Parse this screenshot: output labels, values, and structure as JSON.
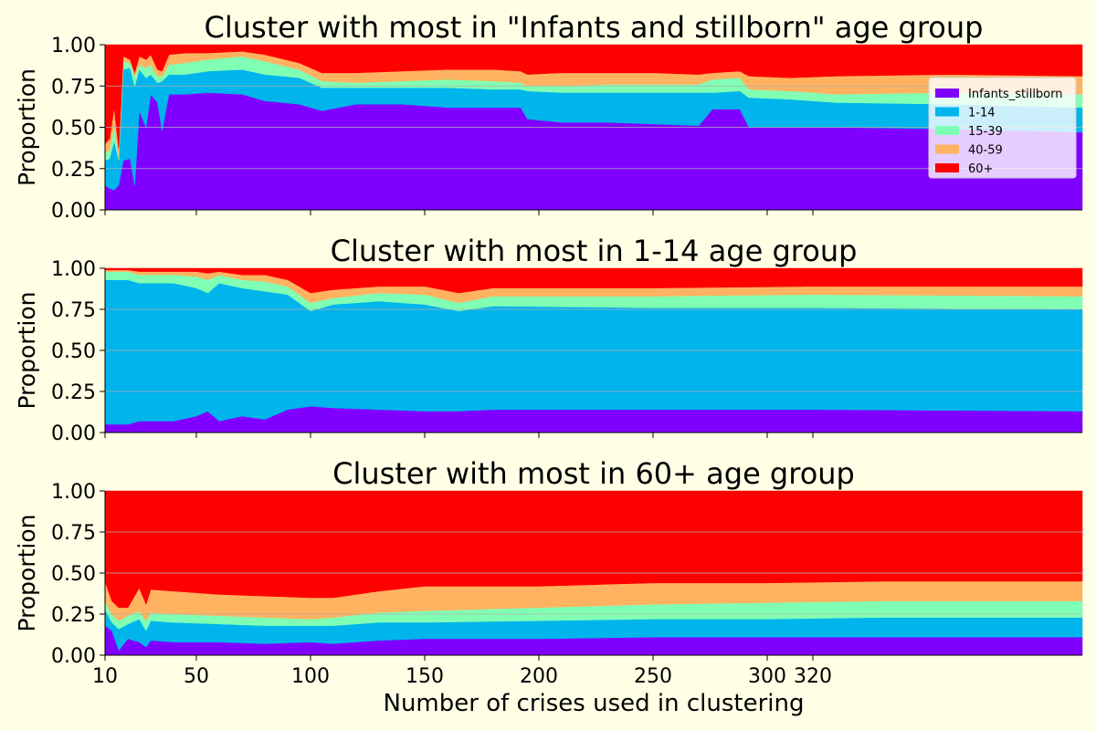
{
  "chart_data": {
    "type": "area",
    "stacked": true,
    "xlabel": "Number of crises used in clustering",
    "ylabel": "Proportion",
    "xlim": [
      10,
      438
    ],
    "ylim": [
      0,
      1
    ],
    "x_ticks": [
      10,
      50,
      100,
      150,
      200,
      250,
      300,
      320
    ],
    "y_ticks": [
      "0.00",
      "0.25",
      "0.50",
      "0.75",
      "1.00"
    ],
    "grid": "horizontal",
    "legend": "upper-right of first panel",
    "series_names": [
      "Infants_stillborn",
      "1-14",
      "15-39",
      "40-59",
      "60+"
    ],
    "colors": [
      "#8000ff",
      "#00b4ec",
      "#80ffb4",
      "#ffb360",
      "#ff0000"
    ],
    "panels": [
      {
        "title": "Cluster with most in \"Infants and stillborn\" age group",
        "show_legend": true,
        "anchors": [
          {
            "x": 10,
            "v": [
              0.15,
              0.15,
              0.05,
              0.05,
              0.6
            ]
          },
          {
            "x": 12,
            "v": [
              0.13,
              0.18,
              0.05,
              0.07,
              0.57
            ]
          },
          {
            "x": 14,
            "v": [
              0.12,
              0.3,
              0.1,
              0.1,
              0.38
            ]
          },
          {
            "x": 16,
            "v": [
              0.15,
              0.15,
              0.02,
              0.05,
              0.63
            ]
          },
          {
            "x": 18,
            "v": [
              0.3,
              0.55,
              0.05,
              0.03,
              0.07
            ]
          },
          {
            "x": 21,
            "v": [
              0.31,
              0.55,
              0.03,
              0.02,
              0.09
            ]
          },
          {
            "x": 23,
            "v": [
              0.15,
              0.6,
              0.06,
              0.02,
              0.17
            ]
          },
          {
            "x": 25,
            "v": [
              0.6,
              0.25,
              0.03,
              0.05,
              0.07
            ]
          },
          {
            "x": 28,
            "v": [
              0.5,
              0.3,
              0.06,
              0.05,
              0.09
            ]
          },
          {
            "x": 30,
            "v": [
              0.7,
              0.12,
              0.06,
              0.06,
              0.06
            ]
          },
          {
            "x": 33,
            "v": [
              0.65,
              0.12,
              0.04,
              0.04,
              0.15
            ]
          },
          {
            "x": 35,
            "v": [
              0.48,
              0.3,
              0.03,
              0.03,
              0.16
            ]
          },
          {
            "x": 38,
            "v": [
              0.7,
              0.12,
              0.06,
              0.06,
              0.06
            ]
          },
          {
            "x": 45,
            "v": [
              0.7,
              0.12,
              0.07,
              0.06,
              0.05
            ]
          },
          {
            "x": 55,
            "v": [
              0.71,
              0.13,
              0.07,
              0.04,
              0.05
            ]
          },
          {
            "x": 70,
            "v": [
              0.7,
              0.15,
              0.08,
              0.03,
              0.04
            ]
          },
          {
            "x": 80,
            "v": [
              0.66,
              0.16,
              0.08,
              0.04,
              0.06
            ]
          },
          {
            "x": 95,
            "v": [
              0.64,
              0.16,
              0.05,
              0.04,
              0.11
            ]
          },
          {
            "x": 105,
            "v": [
              0.6,
              0.14,
              0.04,
              0.05,
              0.17
            ]
          },
          {
            "x": 120,
            "v": [
              0.64,
              0.1,
              0.03,
              0.06,
              0.17
            ]
          },
          {
            "x": 140,
            "v": [
              0.64,
              0.1,
              0.04,
              0.06,
              0.16
            ]
          },
          {
            "x": 160,
            "v": [
              0.62,
              0.12,
              0.05,
              0.06,
              0.15
            ]
          },
          {
            "x": 180,
            "v": [
              0.62,
              0.11,
              0.05,
              0.07,
              0.15
            ]
          },
          {
            "x": 192,
            "v": [
              0.62,
              0.11,
              0.04,
              0.07,
              0.16
            ]
          },
          {
            "x": 195,
            "v": [
              0.55,
              0.17,
              0.03,
              0.07,
              0.18
            ]
          },
          {
            "x": 210,
            "v": [
              0.53,
              0.18,
              0.04,
              0.08,
              0.17
            ]
          },
          {
            "x": 230,
            "v": [
              0.53,
              0.18,
              0.05,
              0.07,
              0.17
            ]
          },
          {
            "x": 250,
            "v": [
              0.52,
              0.19,
              0.05,
              0.07,
              0.17
            ]
          },
          {
            "x": 270,
            "v": [
              0.51,
              0.2,
              0.05,
              0.06,
              0.18
            ]
          },
          {
            "x": 276,
            "v": [
              0.61,
              0.1,
              0.08,
              0.04,
              0.17
            ]
          },
          {
            "x": 288,
            "v": [
              0.61,
              0.11,
              0.08,
              0.04,
              0.16
            ]
          },
          {
            "x": 292,
            "v": [
              0.5,
              0.18,
              0.05,
              0.08,
              0.19
            ]
          },
          {
            "x": 310,
            "v": [
              0.5,
              0.17,
              0.05,
              0.08,
              0.2
            ]
          },
          {
            "x": 330,
            "v": [
              0.5,
              0.15,
              0.05,
              0.11,
              0.19
            ]
          },
          {
            "x": 380,
            "v": [
              0.49,
              0.15,
              0.07,
              0.11,
              0.18
            ]
          },
          {
            "x": 438,
            "v": [
              0.47,
              0.15,
              0.08,
              0.11,
              0.19
            ]
          }
        ]
      },
      {
        "title": "Cluster with most in 1-14 age group",
        "show_legend": false,
        "anchors": [
          {
            "x": 10,
            "v": [
              0.05,
              0.88,
              0.05,
              0.01,
              0.01
            ]
          },
          {
            "x": 20,
            "v": [
              0.05,
              0.88,
              0.05,
              0.01,
              0.01
            ]
          },
          {
            "x": 25,
            "v": [
              0.07,
              0.84,
              0.05,
              0.02,
              0.02
            ]
          },
          {
            "x": 40,
            "v": [
              0.07,
              0.84,
              0.05,
              0.02,
              0.02
            ]
          },
          {
            "x": 50,
            "v": [
              0.1,
              0.78,
              0.07,
              0.03,
              0.02
            ]
          },
          {
            "x": 55,
            "v": [
              0.13,
              0.72,
              0.08,
              0.04,
              0.03
            ]
          },
          {
            "x": 60,
            "v": [
              0.07,
              0.84,
              0.05,
              0.02,
              0.02
            ]
          },
          {
            "x": 70,
            "v": [
              0.1,
              0.78,
              0.05,
              0.03,
              0.04
            ]
          },
          {
            "x": 80,
            "v": [
              0.08,
              0.78,
              0.06,
              0.04,
              0.04
            ]
          },
          {
            "x": 90,
            "v": [
              0.14,
              0.7,
              0.05,
              0.04,
              0.07
            ]
          },
          {
            "x": 100,
            "v": [
              0.16,
              0.58,
              0.05,
              0.06,
              0.15
            ]
          },
          {
            "x": 110,
            "v": [
              0.15,
              0.63,
              0.04,
              0.05,
              0.13
            ]
          },
          {
            "x": 130,
            "v": [
              0.14,
              0.66,
              0.05,
              0.04,
              0.11
            ]
          },
          {
            "x": 150,
            "v": [
              0.13,
              0.65,
              0.06,
              0.05,
              0.11
            ]
          },
          {
            "x": 165,
            "v": [
              0.13,
              0.61,
              0.05,
              0.06,
              0.15
            ]
          },
          {
            "x": 180,
            "v": [
              0.14,
              0.63,
              0.06,
              0.05,
              0.12
            ]
          },
          {
            "x": 250,
            "v": [
              0.14,
              0.62,
              0.07,
              0.05,
              0.12
            ]
          },
          {
            "x": 320,
            "v": [
              0.14,
              0.62,
              0.08,
              0.05,
              0.11
            ]
          },
          {
            "x": 438,
            "v": [
              0.13,
              0.62,
              0.08,
              0.06,
              0.11
            ]
          }
        ]
      },
      {
        "title": "Cluster with most in 60+ age group",
        "show_legend": false,
        "anchors": [
          {
            "x": 10,
            "v": [
              0.18,
              0.1,
              0.05,
              0.12,
              0.55
            ]
          },
          {
            "x": 13,
            "v": [
              0.15,
              0.05,
              0.05,
              0.08,
              0.67
            ]
          },
          {
            "x": 16,
            "v": [
              0.03,
              0.13,
              0.05,
              0.08,
              0.71
            ]
          },
          {
            "x": 20,
            "v": [
              0.1,
              0.09,
              0.05,
              0.05,
              0.71
            ]
          },
          {
            "x": 25,
            "v": [
              0.08,
              0.14,
              0.05,
              0.14,
              0.59
            ]
          },
          {
            "x": 28,
            "v": [
              0.05,
              0.1,
              0.06,
              0.1,
              0.69
            ]
          },
          {
            "x": 30,
            "v": [
              0.09,
              0.12,
              0.05,
              0.14,
              0.6
            ]
          },
          {
            "x": 40,
            "v": [
              0.08,
              0.12,
              0.05,
              0.14,
              0.61
            ]
          },
          {
            "x": 60,
            "v": [
              0.08,
              0.11,
              0.05,
              0.13,
              0.63
            ]
          },
          {
            "x": 80,
            "v": [
              0.07,
              0.11,
              0.05,
              0.13,
              0.64
            ]
          },
          {
            "x": 100,
            "v": [
              0.08,
              0.1,
              0.04,
              0.13,
              0.65
            ]
          },
          {
            "x": 110,
            "v": [
              0.07,
              0.11,
              0.05,
              0.12,
              0.65
            ]
          },
          {
            "x": 130,
            "v": [
              0.09,
              0.11,
              0.06,
              0.13,
              0.61
            ]
          },
          {
            "x": 150,
            "v": [
              0.1,
              0.1,
              0.07,
              0.15,
              0.58
            ]
          },
          {
            "x": 200,
            "v": [
              0.1,
              0.11,
              0.08,
              0.13,
              0.58
            ]
          },
          {
            "x": 250,
            "v": [
              0.11,
              0.11,
              0.09,
              0.13,
              0.56
            ]
          },
          {
            "x": 300,
            "v": [
              0.11,
              0.11,
              0.1,
              0.12,
              0.56
            ]
          },
          {
            "x": 350,
            "v": [
              0.11,
              0.12,
              0.1,
              0.12,
              0.55
            ]
          },
          {
            "x": 438,
            "v": [
              0.11,
              0.12,
              0.1,
              0.12,
              0.55
            ]
          }
        ]
      }
    ]
  }
}
